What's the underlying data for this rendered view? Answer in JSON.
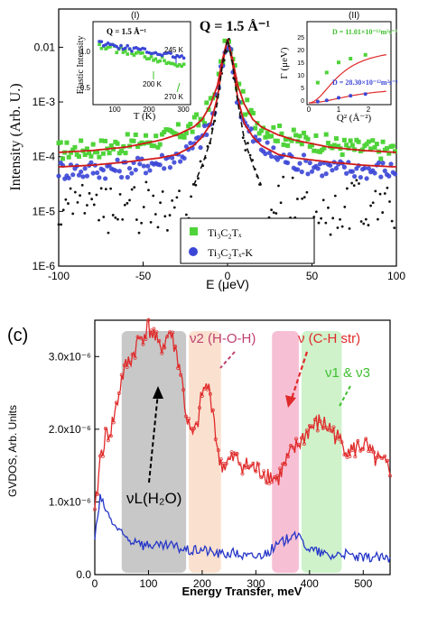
{
  "chart_data": [
    {
      "type": "scatter",
      "panel": "top",
      "title": "Q = 1.5 Å⁻¹",
      "xlabel": "E (μeV)",
      "ylabel": "Intensity (Arb. U.)",
      "xlim": [
        -100,
        100
      ],
      "ylim": [
        1e-06,
        0.05
      ],
      "yscale": "log",
      "xticks": [
        "-100",
        "-50",
        "0",
        "50",
        "100"
      ],
      "yticks": [
        "1E-6",
        "1E-5",
        "1E-4",
        "1E-3",
        "0.01"
      ],
      "legend": {
        "placement": "bottom-center",
        "items": [
          "Ti₃C₂Tₓ",
          "Ti₃C₂Tₓ-K"
        ]
      },
      "series": [
        {
          "name": "Ti₃C₂Tₓ",
          "color": "#4fd33a",
          "x": [
            -100,
            -95,
            -90,
            -85,
            -80,
            -75,
            -70,
            -65,
            -60,
            -55,
            -50,
            -45,
            -40,
            -35,
            -30,
            -25,
            -20,
            -15,
            -10,
            -6,
            -3,
            0,
            3,
            6,
            10,
            15,
            20,
            25,
            30,
            35,
            40,
            45,
            50,
            55,
            60,
            65,
            70,
            75,
            80,
            85,
            90,
            95,
            100
          ],
          "y": [
            0.00013,
            0.00013,
            0.000135,
            0.00014,
            0.00014,
            0.000145,
            0.00015,
            0.00016,
            0.00017,
            0.00018,
            0.00019,
            0.0002,
            0.00021,
            0.00023,
            0.00026,
            0.0003,
            0.00037,
            0.0005,
            0.0009,
            0.002,
            0.006,
            0.014,
            0.006,
            0.002,
            0.0009,
            0.0005,
            0.00037,
            0.0003,
            0.00026,
            0.00023,
            0.00021,
            0.0002,
            0.00019,
            0.00018,
            0.00017,
            0.00016,
            0.00015,
            0.000145,
            0.00014,
            0.00014,
            0.000135,
            0.00013,
            0.00013
          ]
        },
        {
          "name": "Ti₃C₂Tₓ-K",
          "color": "#3b46d6",
          "x": [
            -100,
            -95,
            -90,
            -85,
            -80,
            -75,
            -70,
            -65,
            -60,
            -55,
            -50,
            -45,
            -40,
            -35,
            -30,
            -25,
            -20,
            -15,
            -10,
            -6,
            -3,
            0,
            3,
            6,
            10,
            15,
            20,
            25,
            30,
            35,
            40,
            45,
            50,
            55,
            60,
            65,
            70,
            75,
            80,
            85,
            90,
            95,
            100
          ],
          "y": [
            6e-05,
            5.5e-05,
            6e-05,
            5.5e-05,
            6e-05,
            5.8e-05,
            6e-05,
            6e-05,
            6.2e-05,
            6.5e-05,
            7e-05,
            7.5e-05,
            8e-05,
            9e-05,
            0.0001,
            0.00012,
            0.00015,
            0.00022,
            0.0004,
            0.0012,
            0.005,
            0.014,
            0.005,
            0.0012,
            0.0004,
            0.00022,
            0.00015,
            0.00012,
            0.0001,
            9e-05,
            8e-05,
            7.5e-05,
            7e-05,
            6.5e-05,
            6.2e-05,
            6e-05,
            6e-05,
            5.8e-05,
            6e-05,
            5.5e-05,
            6e-05,
            5.5e-05,
            6e-05
          ]
        }
      ],
      "fit_lines": [
        {
          "color": "#d01a1a",
          "x": [
            -100,
            -80,
            -60,
            -40,
            -30,
            -20,
            -15,
            -10,
            -6,
            -3,
            0,
            3,
            6,
            10,
            15,
            20,
            30,
            40,
            60,
            80,
            100
          ],
          "y": [
            0.00012,
            0.00013,
            0.00015,
            0.0002,
            0.00025,
            0.00035,
            0.00048,
            0.0009,
            0.002,
            0.006,
            0.014,
            0.006,
            0.002,
            0.0009,
            0.00048,
            0.00035,
            0.00025,
            0.0002,
            0.00015,
            0.00013,
            0.00012
          ]
        },
        {
          "color": "#d01a1a",
          "x": [
            -100,
            -80,
            -60,
            -40,
            -30,
            -20,
            -15,
            -10,
            -6,
            -3,
            0,
            3,
            6,
            10,
            15,
            20,
            30,
            40,
            60,
            80,
            100
          ],
          "y": [
            6.5e-05,
            7e-05,
            8e-05,
            9.5e-05,
            0.00011,
            0.00016,
            0.00023,
            0.0004,
            0.0012,
            0.005,
            0.014,
            0.005,
            0.0012,
            0.0004,
            0.00023,
            0.00016,
            0.00011,
            9.5e-05,
            8e-05,
            7e-05,
            6.5e-05
          ]
        }
      ],
      "resolution_line": {
        "style": "dashed",
        "color": "#111111",
        "x": [
          -20,
          -15,
          -10,
          -6,
          -3,
          0,
          3,
          6,
          10,
          15,
          20
        ],
        "y": [
          3e-05,
          7e-05,
          0.0002,
          0.001,
          0.005,
          0.014,
          0.005,
          0.001,
          0.0002,
          7e-05,
          3e-05
        ]
      },
      "insets": [
        {
          "label": "(I)",
          "title": "Q = 1.5 Å⁻¹",
          "xlabel": "T (K)",
          "ylabel": "Elastic Intensity",
          "xticks": [
            "100",
            "200",
            "300"
          ],
          "yticks": [
            "0.5",
            "1.0"
          ],
          "annotations": [
            "245 K",
            "200 K",
            "270 K"
          ]
        },
        {
          "label": "(II)",
          "xlabel": "Q² (Å⁻²)",
          "ylabel": "Γ (μeV)",
          "xticks": [
            "0",
            "1",
            "2"
          ],
          "yticks": [
            "0",
            "5",
            "10",
            "15",
            "20",
            "25"
          ],
          "annotations": [
            {
              "text": "D = 11.01×10⁻¹²m²s⁻¹",
              "color": "#3fbf2f"
            },
            {
              "text": "D = 28.30×10⁻¹²m²s⁻¹",
              "color": "#3b46d6"
            }
          ]
        }
      ]
    },
    {
      "type": "line",
      "panel": "bottom",
      "panel_label": "(c)",
      "xlabel": "Energy Transfer, meV",
      "ylabel": "GVDOS, Arb. Units",
      "xlim": [
        0,
        550
      ],
      "ylim": [
        0,
        3.5e-06
      ],
      "xticks": [
        "0",
        "100",
        "200",
        "300",
        "400",
        "500"
      ],
      "yticks": [
        "0.0",
        "1.0x10⁻⁶",
        "2.0x10⁻⁶",
        "3.0x10⁻⁶"
      ],
      "series": [
        {
          "name": "",
          "color": "#e02a2a",
          "x": [
            0,
            10,
            20,
            30,
            40,
            50,
            60,
            70,
            80,
            90,
            100,
            110,
            120,
            130,
            140,
            150,
            160,
            170,
            180,
            190,
            200,
            210,
            220,
            230,
            240,
            260,
            280,
            300,
            320,
            340,
            360,
            380,
            400,
            420,
            440,
            460,
            480,
            500,
            520,
            540,
            550
          ],
          "y": [
            8e-07,
            1.6e-06,
            1.9e-06,
            2e-06,
            2.3e-06,
            2.7e-06,
            2.9e-06,
            3e-06,
            3.2e-06,
            3.3e-06,
            3.4e-06,
            3.3e-06,
            3.1e-06,
            3.2e-06,
            3.35e-06,
            3.1e-06,
            2.8e-06,
            2.2e-06,
            1.9e-06,
            2e-06,
            2.5e-06,
            2.6e-06,
            2.3e-06,
            1.6e-06,
            1.5e-06,
            1.6e-06,
            1.5e-06,
            1.45e-06,
            1.4e-06,
            1.3e-06,
            1.6e-06,
            1.8e-06,
            2e-06,
            2.1e-06,
            2e-06,
            1.8e-06,
            1.7e-06,
            1.8e-06,
            1.6e-06,
            1.5e-06,
            1.45e-06
          ]
        },
        {
          "name": "",
          "color": "#2536c8",
          "x": [
            0,
            10,
            20,
            30,
            40,
            50,
            60,
            70,
            80,
            90,
            100,
            120,
            140,
            160,
            180,
            200,
            220,
            240,
            260,
            280,
            300,
            320,
            340,
            360,
            370,
            380,
            400,
            420,
            440,
            460,
            480,
            500,
            520,
            540,
            550
          ],
          "y": [
            5e-07,
            1.05e-06,
            9e-07,
            7.5e-07,
            6.5e-07,
            5.5e-07,
            5e-07,
            4.5e-07,
            5e-07,
            4e-07,
            4.2e-07,
            3.8e-07,
            4e-07,
            3.6e-07,
            3.2e-07,
            3.5e-07,
            3e-07,
            2.8e-07,
            3e-07,
            2.5e-07,
            2.5e-07,
            3e-07,
            4e-07,
            5e-07,
            6e-07,
            5e-07,
            3.5e-07,
            3e-07,
            2.5e-07,
            3e-07,
            2.5e-07,
            2.2e-07,
            2.5e-07,
            2.2e-07,
            2e-07
          ]
        }
      ],
      "highlights": [
        {
          "label": "νL(H₂O)",
          "range": [
            50,
            170
          ],
          "color": "#9a9a9a"
        },
        {
          "label": "ν2 (H-O-H)",
          "range": [
            175,
            235
          ],
          "color": "#f6c8a8"
        },
        {
          "label": "ν (C-H str)",
          "range": [
            330,
            380
          ],
          "color": "#f08ab0"
        },
        {
          "label": "ν1 & ν3",
          "range": [
            385,
            460
          ],
          "color": "#a8e8a0"
        }
      ]
    }
  ]
}
